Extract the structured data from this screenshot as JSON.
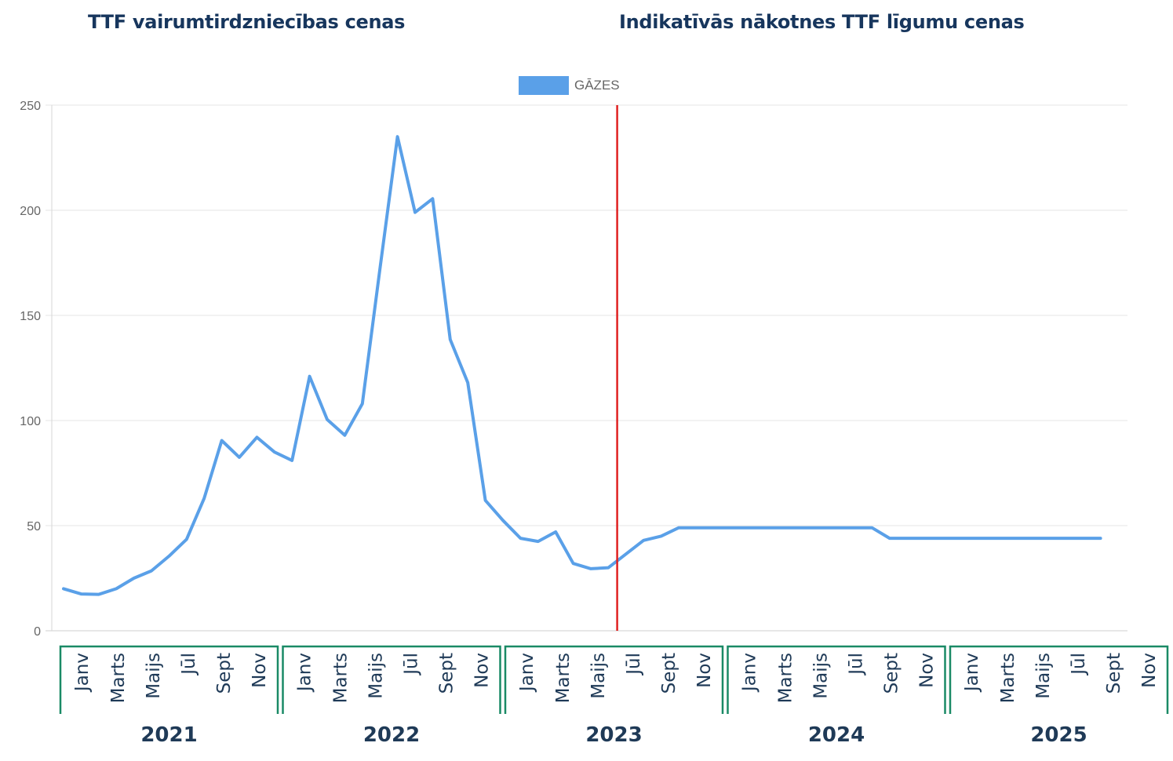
{
  "header": {
    "left_title": "TTF vairumtirdzniecības cenas",
    "right_title": "Indikatīvās nākotnes TTF līgumu cenas"
  },
  "colors": {
    "line": "#5aa0e8",
    "divider": "#e02020",
    "grid": "#e4e4e4",
    "year_bracket": "#1a8a66",
    "text_dark": "#17365d"
  },
  "chart_data": {
    "type": "line",
    "legend": {
      "label": "GĀZES",
      "placement": "top-center"
    },
    "ylim": [
      0,
      250
    ],
    "yticks": [
      0,
      50,
      100,
      150,
      200,
      250
    ],
    "grid": true,
    "x_months_per_year": 12,
    "month_labels": [
      "Janv",
      "Marts",
      "Maijs",
      "Jūl",
      "Sept",
      "Nov"
    ],
    "years": [
      "2021",
      "2022",
      "2023",
      "2024",
      "2025"
    ],
    "divider_after_month": "2023-08",
    "series": [
      {
        "name": "GĀZES",
        "x": [
          "2021-01",
          "2021-02",
          "2021-03",
          "2021-04",
          "2021-05",
          "2021-06",
          "2021-07",
          "2021-08",
          "2021-09",
          "2021-10",
          "2021-11",
          "2021-12",
          "2022-01",
          "2022-02",
          "2022-03",
          "2022-04",
          "2022-05",
          "2022-06",
          "2022-07",
          "2022-08",
          "2022-09",
          "2022-10",
          "2022-11",
          "2022-12",
          "2023-01",
          "2023-02",
          "2023-03",
          "2023-04",
          "2023-05",
          "2023-06",
          "2023-07",
          "2023-08",
          "2023-09",
          "2023-10",
          "2023-11",
          "2023-12",
          "2024-01",
          "2024-02",
          "2024-03",
          "2024-04",
          "2024-05",
          "2024-06",
          "2024-07",
          "2024-08",
          "2024-09",
          "2024-10",
          "2024-11",
          "2024-12",
          "2025-01",
          "2025-02",
          "2025-03",
          "2025-04",
          "2025-05",
          "2025-06",
          "2025-07",
          "2025-08",
          "2025-09",
          "2025-10",
          "2025-11",
          "2025-12"
        ],
        "values": [
          20,
          17.5,
          17.3,
          20,
          25,
          28.5,
          35.5,
          43.5,
          63,
          90.5,
          82.5,
          92,
          85,
          81,
          121,
          100.5,
          93,
          108,
          172,
          235,
          199,
          205.5,
          138.5,
          118,
          62,
          52.5,
          44,
          42.5,
          47,
          32,
          29.5,
          30,
          36.5,
          43,
          45,
          49,
          49,
          49,
          49,
          49,
          49,
          49,
          49,
          49,
          49,
          49,
          49,
          44,
          44,
          44,
          44,
          44,
          44,
          44,
          44,
          44,
          44,
          44,
          44,
          44
        ]
      }
    ]
  }
}
